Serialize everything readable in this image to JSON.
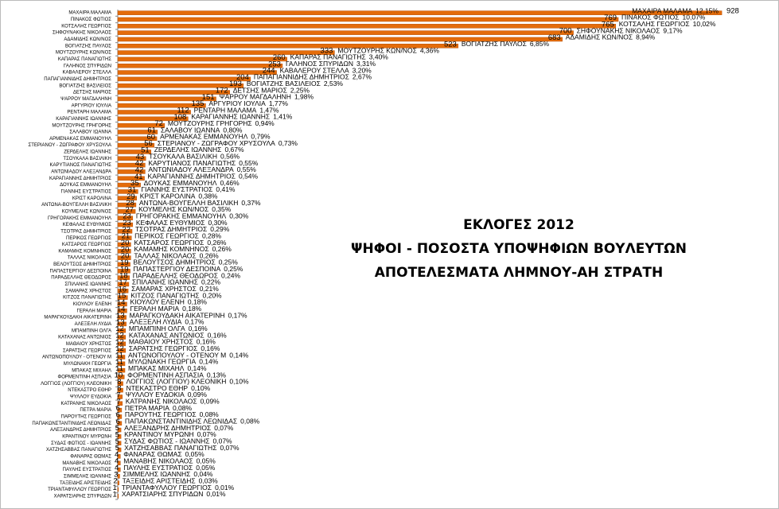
{
  "chart_data": {
    "type": "barh",
    "title_lines": [
      "ΕΚΛΟΓΕΣ 2012",
      "ΨΗΦΟΙ - ΠΟΣΟΣΤΑ ΥΠΟΨΗΦΙΩΝ ΒΟΥΛΕΥΤΩΝ",
      "ΑΠΟΤΕΛΕΣΜΑΤΑ ΛΗΜΝΟΥ-ΑΗ ΣΤΡΑΤΗ"
    ],
    "color": "#e46c0a",
    "xlim": [
      0,
      1000
    ],
    "categories": [
      "ΜΑΧΑΙΡΑ ΜΑΛΑΜΑ",
      "ΠΙΝΑΚΟΣ ΦΩΤΙΟΣ",
      "ΚΟΤΣΑΛΗΣ ΓΕΩΡΓΙΟΣ",
      "ΣΗΦΟΥΝΑΚΗΣ ΝΙΚΟΛΑΟΣ",
      "ΑΔΑΜΙΔΗΣ ΚΩΝ/ΝΟΣ",
      "ΒΟΓΙΑΤΖΗΣ ΠΑΥΛΟΣ",
      "ΜΟΥΤΖΟΥΡΗΣ ΚΩΝ/ΝΟΣ",
      "ΚΑΠΑΡΑΣ ΠΑΝΑΓΙΩΤΗΣ",
      "ΓΑΛΗΝΟΣ ΣΠΥΡΙΔΩΝ",
      "ΚΑΒΑΛΕΡΟΥ ΣΤΕΛΛΑ",
      "ΠΑΠΑΓΙΑΝΝΙΔΗΣ ΔΗΜΗΤΡΙΟΣ",
      "ΒΟΓΙΑΤΖΗΣ ΒΑΣΙΛΕΙΟΣ",
      "ΔΕΤΣΗΣ ΜΑΡΙΟΣ",
      "ΨΑΡΡΟΥ ΜΑΓΔΑΛΗΝΗ",
      "ΑΡΓΥΡΙΟΥ ΙΟΥΛΙΑ",
      "ΡΕΝΤΑΡΗ ΜΑΛΑΜΑ",
      "ΚΑΡΑΓΙΑΝΝΗΣ ΙΩΑΝΝΗΣ",
      "ΜΟΥΤΖΟΥΡΗΣ ΓΡΗΓΟΡΗΣ",
      "ΣΑΛΑΒΟΥ ΙΩΑΝΝΑ",
      "ΑΡΜΕΝΑΚΑΣ ΕΜΜΑΝΟΥΗΛ",
      "ΣΤΕΡΙΑΝΟΥ - ΖΩΓΡΑΦΟΥ ΧΡΥΣΟΥΛΑ",
      "ΖΕΡΔΕΛΗΣ ΙΩΑΝΝΗΣ",
      "ΤΣΟΥΚΑΛΑ ΒΑΣΙΛΙΚΗ",
      "ΚΑΡΥΤΙΑΝΟΣ ΠΑΝΑΓΙΩΤΗΣ",
      "ΑΝΤΩΝΙΑΔΟΥ ΑΛΕΞΑΝΔΡΑ",
      "ΚΑΡΑΓΙΑΝΝΗΣ ΔΗΜΗΤΡΙΟΣ",
      "ΔΟΥΚΑΣ ΕΜΜΑΝΟΥΗΛ",
      "ΓΙΑΝΝΗΣ ΕΥΣΤΡΑΤΙΟΣ",
      "ΚΡΙΣΤ ΚΑΡΟΛΙΝΑ",
      "ΑΝΤΩΝΑ-ΒΟΥΓΕΛΛΗ ΒΑΣΙΛΙΚΗ",
      "ΚΟΥΜΕΛΗΣ ΚΩΝ/ΝΟΣ",
      "ΓΡΗΓΟΡΑΚΗΣ ΕΜΜΑΝΟΥΗΛ",
      "ΚΕΦΑΛΑΣ ΕΥΘΥΜΙΟΣ",
      "ΤΣΟΤΡΑΣ ΔΗΜΗΤΡΙΟΣ",
      "ΠΕΡΙΚΟΣ ΓΕΩΡΓΙΟΣ",
      "ΚΑΤΣΑΡΟΣ ΓΕΩΡΓΙΟΣ",
      "ΚΑΜΑΜΗΣ ΚΟΜΝΗΝΟΣ",
      "ΤΑΛΛΑΣ ΝΙΚΟΛΑΟΣ",
      "ΒΕΛΟΥΤΣΟΣ ΔΗΜΗΤΡΙΟΣ",
      "ΠΑΠΑΣΤΕΡΓΙΟΥ ΔΕΣΠΟΙΝΑ",
      "ΠΑΡΑΔΕΛΛΗΣ ΘΕΟΔΩΡΟΣ",
      "ΣΠΙΛΑΝΗΣ ΙΩΑΝΝΗΣ",
      "ΣΑΜΑΡΑΣ ΧΡΗΣΤΟΣ",
      "ΚΙΤΖΟΣ ΠΑΝΑΓΙΩΤΗΣ",
      "ΚΙΟΥΛΟΥ ΕΛΕΝΗ",
      "ΓΕΡΑΛΗ ΜΑΡΙΑ",
      "ΜΑΡΑΓΚΟΥΔΑΚΗ ΑΙΚΑΤΕΡΙΝΗ",
      "ΑΛΕΞΕΛΗ ΛΥΔΙΑ",
      "ΜΠΑΜΠΙΝΗ ΟΛΓΑ",
      "ΚΑΤΑΧΑΝΑΣ ΑΝΤΩΝΙΟΣ",
      "ΜΑΘΑΙΟΥ ΧΡΗΣΤΟΣ",
      "ΣΑΡΑΤΣΗΣ ΓΕΩΡΓΙΟΣ",
      "ΑΝΤΩΝΟΠΟΥΛΟΥ - ΟΤΕΝΟΥ Μ",
      "ΜΥΛΩΝΑΚΗ ΓΕΩΡΓΙΑ",
      "ΜΠΑΚΑΣ ΜΙΧΑΗΛ",
      "ΦΟΡΜΕΝΤΙΝΗ ΑΣΠΑΣΙΑ",
      "ΛΟΓΓΙΟΣ (ΛΟΓΓΙΟΥ) ΚΛΕΟΝΙΚΗ",
      "ΝΤΕΚΑΣΤΡΟ ΕΘΗΡ",
      "ΨΥΛΛΟΥ ΕΥΔΟΚΙΑ",
      "ΚΑΤΡΑΝΗΣ ΝΙΚΟΛΑΟΣ",
      "ΠΕΤΡΑ ΜΑΡΙΑ",
      "ΠΑΡΟΥΤΗΣ ΓΕΩΡΓΙΟΣ",
      "ΠΑΠΑΚΩΝΣΤΑΝΤΙΝΙΔΗΣ ΛΕΩΝΙΔΑΣ",
      "ΑΛΕΞΑΝΔΡΗΣ ΔΗΜΗΤΡΙΟΣ",
      "ΚΡΑΝΤΙΝΟΥ ΜΥΡΩΝΗ",
      "ΣΥΔΑΣ ΦΩΤΙΟΣ - ΙΩΑΝΝΗΣ",
      "ΧΑΤΖΗΣΑΒΒΑΣ ΠΑΝΑΓΙΩΤΗΣ",
      "ΦΑΝΑΡΑΣ ΘΩΜΑΣ",
      "ΜΑΝΑΒΗΣ ΝΙΚΟΛΑΟΣ",
      "ΠΑΥΛΗΣ ΕΥΣΤΡΑΤΙΟΣ",
      "ΣΙΜΜΕΛΗΣ ΙΩΑΝΝΗΣ",
      "ΤΑΞΕΙΔΗΣ ΑΡΙΣΤΕΙΔΗΣ",
      "ΤΡΙΑΝΤΑΦΥΛΛΟΥ ΓΕΩΡΓΙΟΣ",
      "ΧΑΡΑΤΣΙΑΡΗΣ ΣΠΥΡΙΔΩΝ"
    ],
    "values": [
      928,
      769,
      765,
      700,
      683,
      523,
      333,
      260,
      253,
      244,
      204,
      193,
      172,
      151,
      135,
      112,
      108,
      72,
      61,
      60,
      56,
      51,
      43,
      42,
      42,
      41,
      35,
      31,
      29,
      28,
      27,
      23,
      23,
      22,
      21,
      20,
      20,
      20,
      19,
      19,
      18,
      17,
      16,
      15,
      14,
      14,
      13,
      13,
      12,
      12,
      12,
      12,
      11,
      11,
      11,
      10,
      8,
      8,
      7,
      7,
      6,
      6,
      6,
      5,
      5,
      5,
      5,
      4,
      4,
      4,
      3,
      2,
      1,
      1
    ],
    "share_labels": [
      "12,15%",
      "10,07%",
      "10,02%",
      "9,17%",
      "8,94%",
      "6,85%",
      "4,36%",
      "3,40%",
      "3,31%",
      "3,20%",
      "2,67%",
      "2,53%",
      "2,25%",
      "1,98%",
      "1,77%",
      "1,47%",
      "1,41%",
      "0,94%",
      "0,80%",
      "0,79%",
      "0,73%",
      "0,67%",
      "0,56%",
      "0,55%",
      "0,55%",
      "0,54%",
      "0,46%",
      "0,41%",
      "0,38%",
      "0,37%",
      "0,35%",
      "0,30%",
      "0,30%",
      "0,29%",
      "0,28%",
      "0,26%",
      "0,26%",
      "0,26%",
      "0,25%",
      "0,25%",
      "0,24%",
      "0,22%",
      "0,21%",
      "0,20%",
      "0,18%",
      "0,18%",
      "0,17%",
      "0,17%",
      "0,16%",
      "0,16%",
      "0,16%",
      "0,16%",
      "0,14%",
      "0,14%",
      "0,14%",
      "0,13%",
      "0,10%",
      "0,10%",
      "0,09%",
      "0,09%",
      "0,08%",
      "0,08%",
      "0,08%",
      "0,07%",
      "0,07%",
      "0,07%",
      "0,07%",
      "0,05%",
      "0,05%",
      "0,05%",
      "0,04%",
      "0,03%",
      "0,01%",
      "0,01%"
    ]
  }
}
